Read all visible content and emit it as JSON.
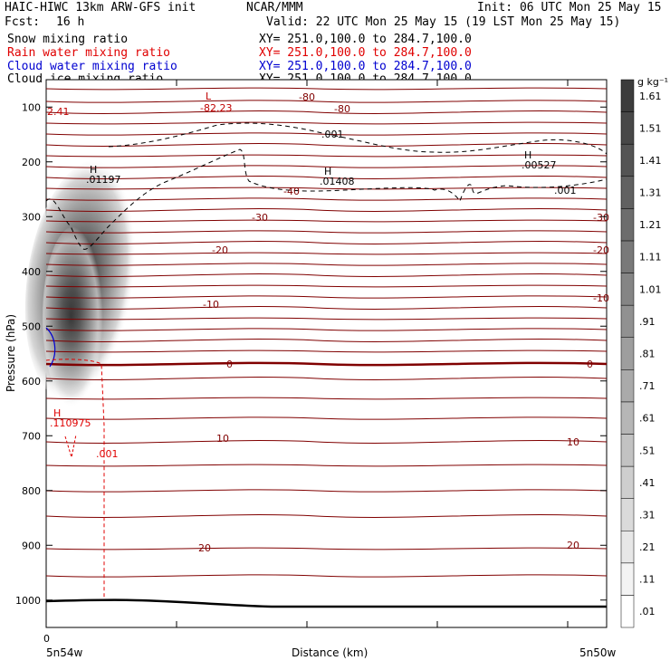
{
  "header": {
    "model": "HAIC-HIWC 13km ARW-GFS init",
    "org": "NCAR/MMM",
    "init": "Init: 06 UTC Mon 25 May 15",
    "fcst_label": "Fcst:",
    "fcst_value": "16 h",
    "valid": "Valid: 22 UTC Mon 25 May 15 (19 LST Mon 25 May 15)"
  },
  "fields": [
    {
      "label": "Snow mixing ratio",
      "xy": "XY= 251.0,100.0 to 284.7,100.0",
      "color": "#000000"
    },
    {
      "label": "Rain water mixing ratio",
      "xy": "XY= 251.0,100.0 to 284.7,100.0",
      "color": "#e00000"
    },
    {
      "label": "Cloud water mixing ratio",
      "xy": "XY= 251.0,100.0 to 284.7,100.0",
      "color": "#0000d0"
    },
    {
      "label": "Cloud ice mixing ratio",
      "xy": "XY= 251.0,100.0 to 284.7,100.0",
      "color": "#000000"
    }
  ],
  "chart_data": {
    "type": "heatmap",
    "xlabel": "Distance (km)",
    "ylabel": "Pressure (hPa)",
    "x_tick_labels": [
      "0"
    ],
    "x_end_labels": [
      "5n54w",
      "5n50w"
    ],
    "y_ticks": [
      100,
      200,
      300,
      400,
      500,
      600,
      700,
      800,
      900,
      1000
    ],
    "ylim": [
      1050,
      50
    ],
    "colorbar": {
      "unit": "g kg⁻¹",
      "levels": [
        ".01",
        ".11",
        ".21",
        ".31",
        ".41",
        ".51",
        ".61",
        ".71",
        ".81",
        ".91",
        "1.01",
        "1.11",
        "1.21",
        "1.31",
        "1.41",
        "1.51",
        "1.61"
      ]
    },
    "temperature_contours": [
      {
        "label": "-80",
        "p": 100
      },
      {
        "label": "-40",
        "p": 250
      },
      {
        "label": "-30",
        "p": 300
      },
      {
        "label": "-20",
        "p": 350
      },
      {
        "label": "-10",
        "p": 450
      },
      {
        "label": "0",
        "p": 565
      },
      {
        "label": "10",
        "p": 700
      },
      {
        "label": "20",
        "p": 900
      }
    ],
    "annotations": [
      {
        "text": "L",
        "color": "#c00000"
      },
      {
        "text": "-82.23",
        "color": "#c00000"
      },
      {
        "text": "2.41",
        "color": "#c00000"
      },
      {
        "text": ".001",
        "color": "#000000"
      },
      {
        "text": "H",
        "color": "#000000"
      },
      {
        "text": ".01197",
        "color": "#000000"
      },
      {
        "text": ".01408",
        "color": "#000000"
      },
      {
        "text": ".00527",
        "color": "#000000"
      },
      {
        "text": ".110975",
        "color": "#e00000"
      },
      {
        "text": ".001",
        "color": "#e00000"
      }
    ]
  }
}
